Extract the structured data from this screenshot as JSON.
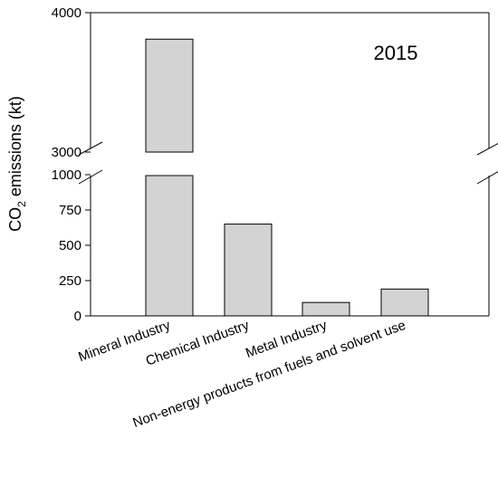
{
  "chart_data": {
    "type": "bar",
    "title": "2015",
    "ylabel_main": "CO",
    "ylabel_sub": "2",
    "ylabel_rest": " emissions (kt)",
    "categories": [
      "Mineral Industry",
      "Chemical Industry",
      "Metal Industry",
      "Non-energy products from fuels and solvent use"
    ],
    "values": [
      3810,
      650,
      95,
      190
    ],
    "bar_color": "#d3d3d3",
    "axis_break": {
      "lower_range": [
        0,
        1000
      ],
      "upper_range": [
        3000,
        4000
      ]
    },
    "lower_ticks": [
      "0",
      "250",
      "500",
      "750",
      "1000"
    ],
    "upper_ticks": [
      "3000",
      "4000"
    ]
  }
}
